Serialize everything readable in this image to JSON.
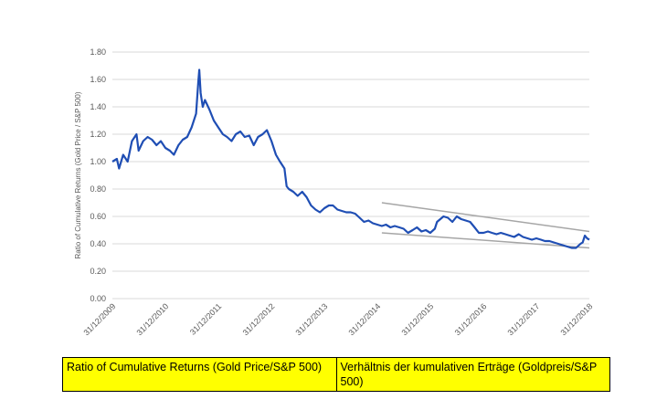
{
  "chart_data": {
    "type": "line",
    "title": "",
    "xlabel": "",
    "ylabel": "Ratio of Cumulative Returns (Gold Price / S&P 500)",
    "ylim": [
      0,
      1.8
    ],
    "yticks": [
      "0.00",
      "0.20",
      "0.40",
      "0.60",
      "0.80",
      "1.00",
      "1.20",
      "1.40",
      "1.60",
      "1.80"
    ],
    "xlim": [
      "2009-12-31",
      "2018-12-31"
    ],
    "xticks": [
      "31/12/2009",
      "31/12/2010",
      "31/12/2011",
      "31/12/2012",
      "31/12/2013",
      "31/12/2014",
      "31/12/2015",
      "31/12/2016",
      "31/12/2017",
      "31/12/2018"
    ],
    "grid": "horizontal",
    "legend": "none",
    "series": [
      {
        "color": "#1f4eb4",
        "x": [
          "2009-12-31",
          "2010-01-31",
          "2010-02-15",
          "2010-03-15",
          "2010-04-15",
          "2010-05-15",
          "2010-06-15",
          "2010-06-30",
          "2010-07-31",
          "2010-08-31",
          "2010-09-30",
          "2010-10-31",
          "2010-11-30",
          "2010-12-31",
          "2011-01-31",
          "2011-02-28",
          "2011-03-31",
          "2011-04-30",
          "2011-05-31",
          "2011-06-30",
          "2011-07-31",
          "2011-08-15",
          "2011-08-22",
          "2011-08-31",
          "2011-09-15",
          "2011-09-30",
          "2011-10-31",
          "2011-11-30",
          "2011-12-31",
          "2012-01-31",
          "2012-02-29",
          "2012-03-31",
          "2012-04-30",
          "2012-05-31",
          "2012-06-30",
          "2012-07-31",
          "2012-08-31",
          "2012-09-30",
          "2012-10-31",
          "2012-11-30",
          "2012-12-31",
          "2013-01-31",
          "2013-02-28",
          "2013-03-31",
          "2013-04-15",
          "2013-04-30",
          "2013-05-31",
          "2013-06-30",
          "2013-07-31",
          "2013-08-31",
          "2013-09-30",
          "2013-10-31",
          "2013-11-30",
          "2013-12-31",
          "2014-01-31",
          "2014-02-28",
          "2014-03-31",
          "2014-04-30",
          "2014-05-31",
          "2014-06-30",
          "2014-07-31",
          "2014-08-31",
          "2014-09-30",
          "2014-10-31",
          "2014-11-30",
          "2014-12-31",
          "2015-01-31",
          "2015-02-28",
          "2015-03-31",
          "2015-04-30",
          "2015-05-31",
          "2015-06-30",
          "2015-07-31",
          "2015-08-31",
          "2015-09-30",
          "2015-10-31",
          "2015-11-30",
          "2015-12-31",
          "2016-01-31",
          "2016-02-15",
          "2016-03-31",
          "2016-04-30",
          "2016-05-31",
          "2016-06-30",
          "2016-07-31",
          "2016-08-31",
          "2016-09-30",
          "2016-10-31",
          "2016-11-30",
          "2016-12-31",
          "2017-01-31",
          "2017-02-28",
          "2017-03-31",
          "2017-04-30",
          "2017-05-31",
          "2017-06-30",
          "2017-07-31",
          "2017-08-31",
          "2017-09-30",
          "2017-10-31",
          "2017-11-30",
          "2017-12-31",
          "2018-01-31",
          "2018-02-28",
          "2018-03-31",
          "2018-04-30",
          "2018-05-31",
          "2018-06-30",
          "2018-07-31",
          "2018-08-31",
          "2018-09-30",
          "2018-10-31",
          "2018-11-15",
          "2018-11-30",
          "2018-12-15",
          "2018-12-31"
        ],
        "y": [
          1.0,
          1.02,
          0.95,
          1.05,
          1.0,
          1.15,
          1.2,
          1.08,
          1.15,
          1.18,
          1.16,
          1.12,
          1.15,
          1.1,
          1.08,
          1.05,
          1.12,
          1.16,
          1.18,
          1.25,
          1.35,
          1.58,
          1.67,
          1.5,
          1.4,
          1.45,
          1.38,
          1.3,
          1.25,
          1.2,
          1.18,
          1.15,
          1.2,
          1.22,
          1.18,
          1.19,
          1.12,
          1.18,
          1.2,
          1.23,
          1.15,
          1.05,
          1.0,
          0.95,
          0.82,
          0.8,
          0.78,
          0.75,
          0.78,
          0.74,
          0.68,
          0.65,
          0.63,
          0.66,
          0.68,
          0.68,
          0.65,
          0.64,
          0.63,
          0.63,
          0.62,
          0.59,
          0.56,
          0.57,
          0.55,
          0.54,
          0.53,
          0.54,
          0.52,
          0.53,
          0.52,
          0.51,
          0.48,
          0.5,
          0.52,
          0.49,
          0.5,
          0.48,
          0.51,
          0.56,
          0.6,
          0.59,
          0.56,
          0.6,
          0.58,
          0.57,
          0.56,
          0.52,
          0.48,
          0.48,
          0.49,
          0.48,
          0.47,
          0.48,
          0.47,
          0.46,
          0.45,
          0.47,
          0.45,
          0.44,
          0.43,
          0.44,
          0.43,
          0.42,
          0.42,
          0.41,
          0.4,
          0.39,
          0.38,
          0.37,
          0.37,
          0.4,
          0.41,
          0.46,
          0.44,
          0.43
        ]
      }
    ],
    "trend_lines": [
      {
        "x": [
          "2015-01-31",
          "2018-12-31"
        ],
        "y": [
          0.7,
          0.49
        ],
        "color": "#a6a6a6"
      },
      {
        "x": [
          "2015-01-31",
          "2018-12-31"
        ],
        "y": [
          0.48,
          0.37
        ],
        "color": "#a6a6a6"
      }
    ]
  },
  "caption": {
    "english": "Ratio of Cumulative Returns (Gold Price/S&P 500)",
    "german": "Verhältnis der kumulativen Erträge (Goldpreis/S&P 500)"
  }
}
